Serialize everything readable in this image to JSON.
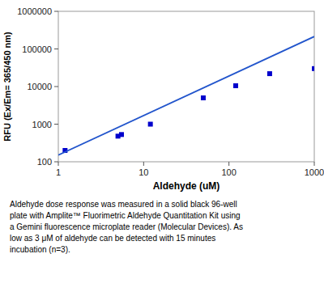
{
  "chart_data": {
    "type": "scatter",
    "xlabel": "Aldehyde (uM)",
    "ylabel": "RFU (Ex/Em= 365/450 nm)",
    "caption": "Aldehyde dose response was measured in a solid black 96-well\nplate with Amplite™ Fluorimetric Aldehyde Quantitation Kit using\na Gemini fluorescence microplate reader (Molecular Devices). As\nlow as 3 μM of aldehyde can be detected with 15 minutes\nincubation (n=3).",
    "log": true,
    "series": [
      {
        "type": "scatter",
        "marker": "square",
        "color": "#0000CC",
        "x": [
          1.2,
          5,
          5.5,
          12,
          50,
          120,
          300,
          1000
        ],
        "values": [
          200,
          480,
          530,
          1000,
          5000,
          10500,
          22000,
          30000
        ]
      },
      {
        "type": "line",
        "line_style": "solid",
        "color": "#2255CC",
        "x": [
          1,
          1000
        ],
        "values": [
          151.3561248,
          213796.209
        ]
      }
    ],
    "xlim": [
      1,
      1000
    ],
    "ylim": [
      100,
      1000000
    ],
    "xticks": [
      1,
      10,
      100,
      1000
    ],
    "yticks": [
      100,
      1000,
      10000,
      100000,
      1000000
    ]
  }
}
